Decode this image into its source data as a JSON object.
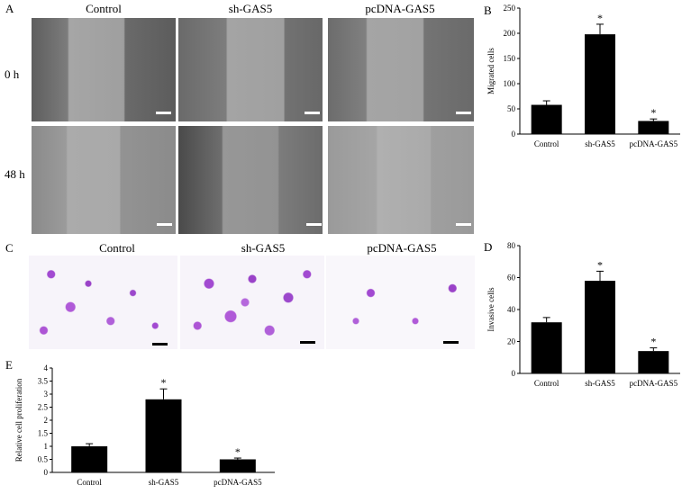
{
  "panels": {
    "A": {
      "letter": "A",
      "columns": [
        "Control",
        "sh-GAS5",
        "pcDNA-GAS5"
      ],
      "rows": [
        "0 h",
        "48 h"
      ]
    },
    "B": {
      "letter": "B"
    },
    "C": {
      "letter": "C",
      "columns": [
        "Control",
        "sh-GAS5",
        "pcDNA-GAS5"
      ]
    },
    "D": {
      "letter": "D"
    },
    "E": {
      "letter": "E"
    }
  },
  "chart_data": [
    {
      "id": "B",
      "type": "bar",
      "categories": [
        "Control",
        "sh-GAS5",
        "pcDNA-GAS5"
      ],
      "values": [
        58,
        198,
        26
      ],
      "errors": [
        8,
        20,
        4
      ],
      "significance": [
        "",
        "*",
        "*"
      ],
      "ylabel": "Migrated cells",
      "ylim": [
        0,
        250
      ],
      "yticks": [
        0,
        50,
        100,
        150,
        200,
        250
      ],
      "bar_color": "#000000",
      "grid": false
    },
    {
      "id": "D",
      "type": "bar",
      "categories": [
        "Control",
        "sh-GAS5",
        "pcDNA-GAS5"
      ],
      "values": [
        32,
        58,
        14
      ],
      "errors": [
        3,
        6,
        2
      ],
      "significance": [
        "",
        "*",
        "*"
      ],
      "ylabel": "Invasive cells",
      "ylim": [
        0,
        80
      ],
      "yticks": [
        0,
        20,
        40,
        60,
        80
      ],
      "bar_color": "#000000",
      "grid": false
    },
    {
      "id": "E",
      "type": "bar",
      "categories": [
        "Control",
        "sh-GAS5",
        "pcDNA-GAS5"
      ],
      "values": [
        1.0,
        2.8,
        0.5
      ],
      "errors": [
        0.1,
        0.4,
        0.05
      ],
      "significance": [
        "",
        "*",
        "*"
      ],
      "ylabel": "Relative cell proliferation",
      "ylim": [
        0,
        4
      ],
      "yticks": [
        0,
        0.5,
        1,
        1.5,
        2,
        2.5,
        3,
        3.5,
        4
      ],
      "bar_color": "#000000",
      "grid": false
    }
  ]
}
